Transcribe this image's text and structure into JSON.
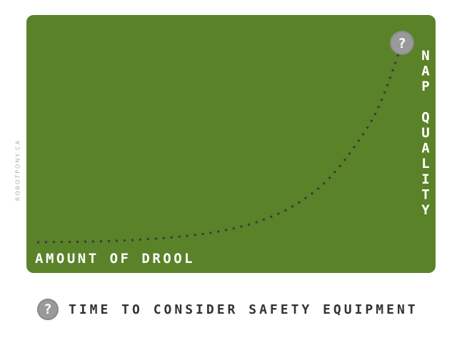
{
  "watermark": "ROBOTPONY.CA",
  "colors": {
    "panel": "#5a8228",
    "curve": "#3a3a3a",
    "label": "#ffffff",
    "badge": "#9a9a9a",
    "legend_text": "#333333"
  },
  "chart_data": {
    "type": "line",
    "title": "",
    "xlabel": "AMOUNT OF DROOL",
    "ylabel": "NAP QUALITY",
    "xlim": [
      0,
      1
    ],
    "ylim": [
      0,
      1
    ],
    "grid": false,
    "line_style": "dotted",
    "series": [
      {
        "x": [
          0,
          0.1,
          0.2,
          0.3,
          0.4,
          0.5,
          0.6,
          0.7,
          0.8,
          0.9,
          0.95,
          1.0
        ],
        "y": [
          0,
          0.002,
          0.006,
          0.015,
          0.03,
          0.055,
          0.1,
          0.18,
          0.32,
          0.56,
          0.74,
          1.0
        ]
      }
    ],
    "annotations": [
      {
        "x": 1.0,
        "y": 1.0,
        "marker": "?"
      }
    ]
  },
  "legend": {
    "marker": "?",
    "text": "TIME TO CONSIDER SAFETY EQUIPMENT"
  }
}
